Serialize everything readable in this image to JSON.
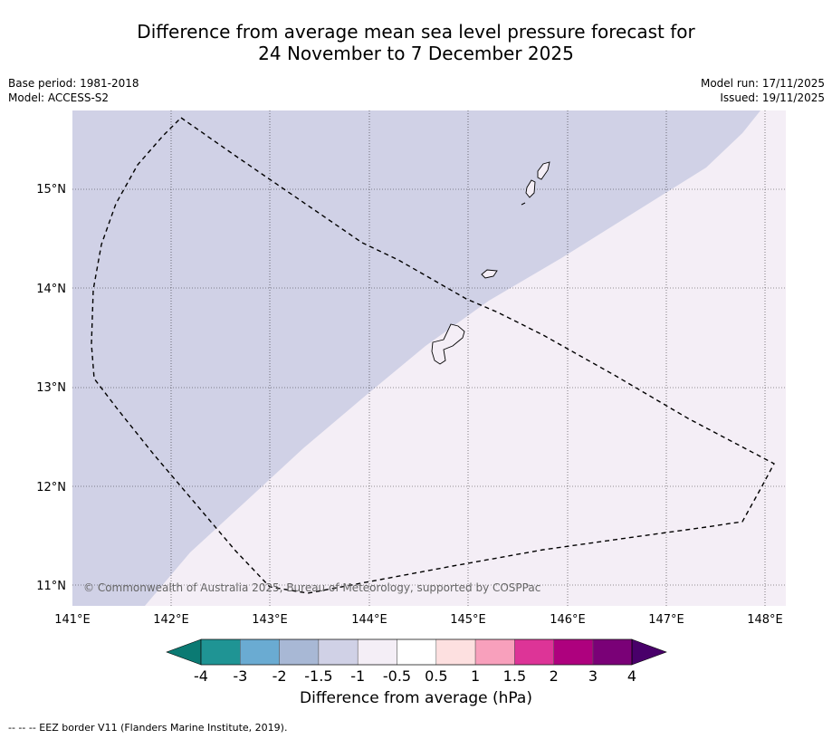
{
  "title": {
    "line1": "Difference from average mean sea level pressure forecast for",
    "line2": "24 November to 7 December 2025"
  },
  "meta": {
    "base_period": "Base period: 1981-2018",
    "model": "Model: ACCESS-S2",
    "model_run": "Model run: 17/11/2025",
    "issued": "Issued: 19/11/2025"
  },
  "map": {
    "lon_labels": [
      "141°E",
      "142°E",
      "143°E",
      "144°E",
      "145°E",
      "146°E",
      "147°E",
      "148°E"
    ],
    "lat_labels": [
      "15°N",
      "14°N",
      "13°N",
      "12°N",
      "11°N"
    ],
    "copyright": "© Commonwealth of Australia 2025, Bureau of Meteorology, supported by COSPPac",
    "fill_colors": {
      "minus1_5_to_minus1": "#d0d1e6",
      "minus1_to_minus0_5": "#f4eef6"
    }
  },
  "colorbar": {
    "ticks": [
      "-4",
      "-3",
      "-2",
      "-1.5",
      "-1",
      "-0.5",
      "0.5",
      "1",
      "1.5",
      "2",
      "3",
      "4"
    ],
    "colors": [
      "#0b7a73",
      "#1f9494",
      "#6aabd2",
      "#a8b8d5",
      "#d0d1e6",
      "#f4eef6",
      "#ffffff",
      "#fde0e0",
      "#f8a0bc",
      "#dd3497",
      "#ae017e",
      "#7a0177",
      "#49006a"
    ],
    "label": "Difference from average (hPa)"
  },
  "footer": "--  --  -- EEZ border V11 (Flanders Marine Institute, 2019)."
}
